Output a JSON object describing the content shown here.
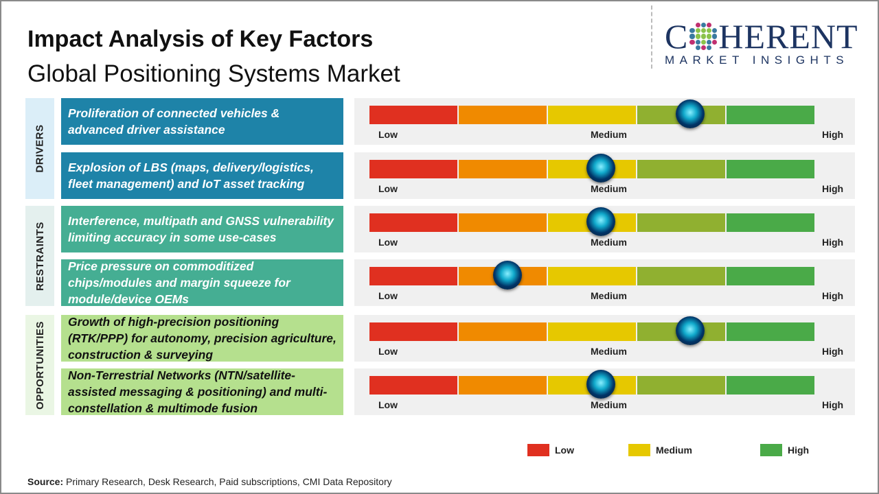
{
  "header": {
    "title": "Impact Analysis of Key Factors",
    "subtitle": "Global Positioning Systems Market"
  },
  "logo": {
    "line1_a": "C",
    "line1_b": "HERENT",
    "line2": "MARKET INSIGHTS"
  },
  "chart_data": {
    "type": "gauge",
    "scale_labels": [
      "Low",
      "Medium",
      "High"
    ],
    "segment_colors": [
      "#e03020",
      "#f08a00",
      "#e6c800",
      "#90b030",
      "#4aaa48"
    ],
    "categories": [
      {
        "name": "DRIVERS",
        "color": "#dbeef8",
        "factor_color": "#1e83a8",
        "text_color": "#ffffff"
      },
      {
        "name": "RESTRAINTS",
        "color": "#e4f0ee",
        "factor_color": "#45ae93",
        "text_color": "#ffffff"
      },
      {
        "name": "OPPORTUNITIES",
        "color": "#eaf6e4",
        "factor_color": "#b5e08e",
        "text_color": "#111111"
      }
    ],
    "factors": [
      {
        "category": "DRIVERS",
        "text": "Proliferation of connected vehicles & advanced driver assistance",
        "impact": 0.72
      },
      {
        "category": "DRIVERS",
        "text": "Explosion of LBS (maps, delivery/logistics, fleet management) and IoT asset tracking",
        "impact": 0.52
      },
      {
        "category": "RESTRAINTS",
        "text": "Interference, multipath and GNSS vulnerability limiting accuracy in some use-cases",
        "impact": 0.52
      },
      {
        "category": "RESTRAINTS",
        "text": "Price pressure on commoditized chips/modules and margin squeeze for module/device OEMs",
        "impact": 0.31
      },
      {
        "category": "OPPORTUNITIES",
        "text": "Growth of high-precision positioning (RTK/PPP) for autonomy, precision agriculture, construction & surveying",
        "impact": 0.72
      },
      {
        "category": "OPPORTUNITIES",
        "text": "Non-Terrestrial Networks (NTN/satellite-assisted messaging & positioning) and multi-constellation & multimode fusion",
        "impact": 0.52
      }
    ],
    "legend": [
      {
        "label": "Low",
        "color": "#e03020"
      },
      {
        "label": "Medium",
        "color": "#e6c800"
      },
      {
        "label": "High",
        "color": "#4aaa48"
      }
    ]
  },
  "footer": {
    "source_label": "Source:",
    "source_text": " Primary Research, Desk Research, Paid subscriptions, CMI Data Repository"
  }
}
